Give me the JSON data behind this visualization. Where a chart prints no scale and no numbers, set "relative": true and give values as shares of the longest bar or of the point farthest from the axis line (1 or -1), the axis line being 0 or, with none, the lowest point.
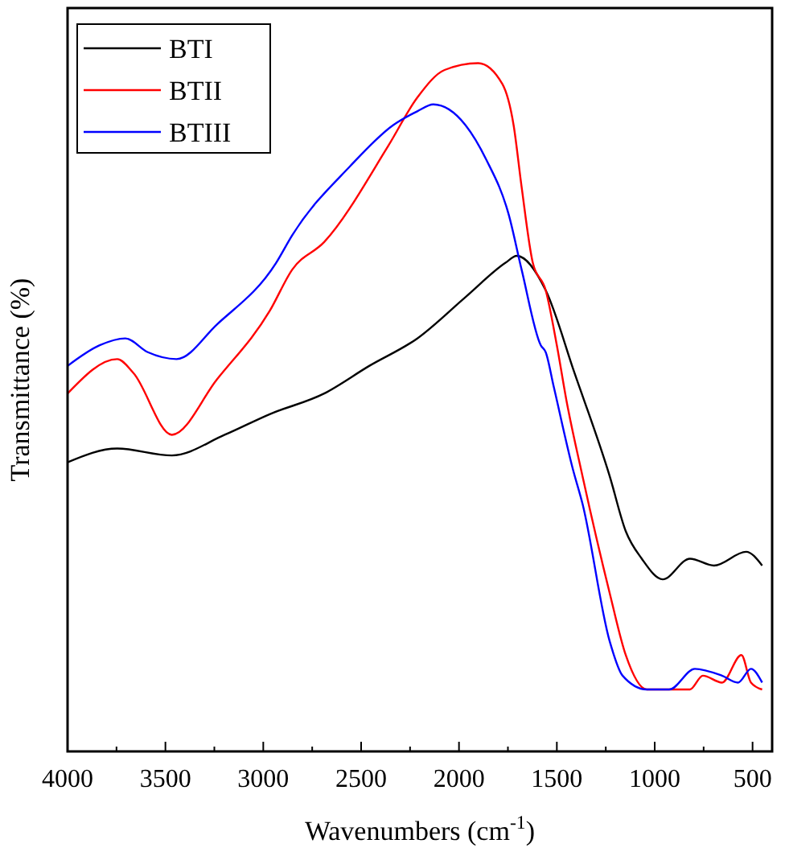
{
  "chart_data": {
    "type": "line",
    "relative": true,
    "xlabel": "Wavenumbers (cm$^{-1}$)",
    "ylabel": "Transmittance (%)",
    "xlim": [
      4000,
      400
    ],
    "xticks": [
      4000,
      3500,
      3000,
      2500,
      2000,
      1500,
      1000,
      500
    ],
    "legend": "top left",
    "grid": false,
    "line_style": "solid",
    "series": [
      {
        "name": "BTI",
        "color": "#000000",
        "x": [
          4000,
          3746,
          3467,
          3197,
          2967,
          2689,
          2459,
          2213,
          1967,
          1762,
          1705,
          1557,
          1410,
          1230,
          1148,
          1066,
          959,
          820,
          697,
          533,
          451
        ],
        "values": [
          0.42,
          0.44,
          0.43,
          0.46,
          0.49,
          0.52,
          0.56,
          0.6,
          0.66,
          0.71,
          0.72,
          0.67,
          0.55,
          0.4,
          0.32,
          0.28,
          0.25,
          0.28,
          0.27,
          0.29,
          0.27
        ]
      },
      {
        "name": "BTII",
        "color": "#ff0000",
        "x": [
          4000,
          3746,
          3664,
          3467,
          3238,
          2967,
          2852,
          2689,
          2361,
          2213,
          2074,
          1902,
          1779,
          1721,
          1680,
          1623,
          1557,
          1500,
          1451,
          1369,
          1230,
          1148,
          1041,
          926,
          820,
          754,
          656,
          557,
          508,
          451
        ],
        "values": [
          0.52,
          0.57,
          0.55,
          0.46,
          0.54,
          0.64,
          0.7,
          0.74,
          0.88,
          0.95,
          0.99,
          1,
          0.97,
          0.91,
          0.82,
          0.71,
          0.67,
          0.59,
          0.51,
          0.4,
          0.23,
          0.14,
          0.09,
          0.09,
          0.09,
          0.11,
          0.1,
          0.14,
          0.1,
          0.09
        ]
      },
      {
        "name": "BTIII",
        "color": "#0000ff",
        "x": [
          4000,
          3836,
          3705,
          3590,
          3443,
          3238,
          2934,
          2852,
          2557,
          2336,
          2213,
          2131,
          1967,
          1861,
          1746,
          1680,
          1582,
          1557,
          1516,
          1418,
          1369,
          1230,
          1164,
          1041,
          926,
          795,
          656,
          574,
          508,
          451
        ],
        "values": [
          0.56,
          0.59,
          0.6,
          0.58,
          0.57,
          0.62,
          0.71,
          0.75,
          0.85,
          0.91,
          0.93,
          0.94,
          0.91,
          0.86,
          0.78,
          0.7,
          0.59,
          0.58,
          0.53,
          0.41,
          0.36,
          0.16,
          0.11,
          0.09,
          0.09,
          0.12,
          0.11,
          0.1,
          0.12,
          0.1
        ]
      }
    ]
  }
}
